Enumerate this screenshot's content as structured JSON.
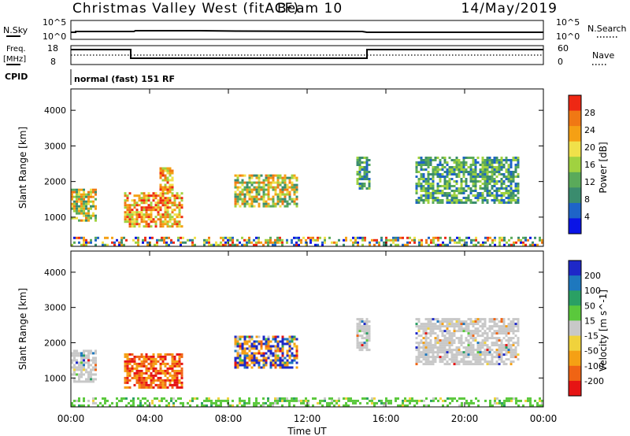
{
  "header": {
    "title": "Christmas Valley West (fitACF)",
    "beam": "Beam 10",
    "date": "14/May/2019"
  },
  "panels": {
    "nsky": {
      "label": "N.Sky",
      "ytick_top": "10^5",
      "ytick_bot": "10^0"
    },
    "nsearch": {
      "label": "N.Search",
      "ytick_top": "10^5",
      "ytick_bot": "10^0"
    },
    "freq": {
      "label_line1": "Freq.",
      "label_line2": "[MHz]",
      "ytick_top": "18",
      "ytick_bot": "8"
    },
    "nave": {
      "label": "Nave",
      "ytick_top": "60",
      "ytick_bot": "0"
    },
    "cpid": {
      "label": "CPID",
      "value": "normal (fast) 151 RF"
    }
  },
  "chart_data": [
    {
      "type": "heatmap",
      "title": "",
      "ylabel": "Slant Range [km]",
      "xlabel": "Time UT",
      "ylim": [
        180,
        4600
      ],
      "yticks": [
        "1000",
        "2000",
        "3000",
        "4000"
      ],
      "xticks": [
        "00:00",
        "04:00",
        "08:00",
        "12:00",
        "16:00",
        "20:00",
        "00:00"
      ],
      "colorbar": {
        "label": "Power [dB]",
        "ticks": [
          "4",
          "8",
          "12",
          "16",
          "20",
          "24",
          "28"
        ],
        "colors": [
          "#0a14e6",
          "#1e64c8",
          "#3a8c6e",
          "#5aaa5a",
          "#a0d240",
          "#f0e14a",
          "#f5a014",
          "#f07814",
          "#ee2814"
        ]
      },
      "regions": [
        {
          "t": [
            0.0,
            1.3
          ],
          "r": [
            900,
            1800
          ],
          "level": "mid"
        },
        {
          "t": [
            2.7,
            5.7
          ],
          "r": [
            700,
            1700
          ],
          "level": "high"
        },
        {
          "t": [
            4.5,
            5.2
          ],
          "r": [
            1700,
            2400
          ],
          "level": "high"
        },
        {
          "t": [
            8.3,
            11.5
          ],
          "r": [
            1300,
            2200
          ],
          "level": "mid"
        },
        {
          "t": [
            14.5,
            15.2
          ],
          "r": [
            1800,
            2700
          ],
          "level": "low"
        },
        {
          "t": [
            17.5,
            22.7
          ],
          "r": [
            1400,
            2700
          ],
          "level": "low"
        },
        {
          "t": [
            0.0,
            24.0
          ],
          "r": [
            180,
            450
          ],
          "level": "ground"
        }
      ]
    },
    {
      "type": "heatmap",
      "title": "",
      "ylabel": "Slant Range [km]",
      "xlabel": "Time UT",
      "ylim": [
        180,
        4600
      ],
      "yticks": [
        "1000",
        "2000",
        "3000",
        "4000"
      ],
      "xticks": [
        "00:00",
        "04:00",
        "08:00",
        "12:00",
        "16:00",
        "20:00",
        "00:00"
      ],
      "colorbar": {
        "label": "Velocity [m s^-1]",
        "ticks": [
          "200",
          "100",
          "50",
          "15",
          "-15",
          "-50",
          "-100",
          "-200"
        ],
        "colors": [
          "#1e28c8",
          "#1e78be",
          "#2aa064",
          "#5ac83c",
          "#c8c8c8",
          "#f0d23c",
          "#f5a014",
          "#f06414",
          "#e61414"
        ]
      },
      "regions": [
        {
          "t": [
            0.0,
            1.3
          ],
          "r": [
            900,
            1800
          ],
          "level": "zero"
        },
        {
          "t": [
            2.7,
            5.7
          ],
          "r": [
            700,
            1700
          ],
          "level": "neg"
        },
        {
          "t": [
            8.3,
            11.5
          ],
          "r": [
            1300,
            2200
          ],
          "level": "mixed"
        },
        {
          "t": [
            14.5,
            15.2
          ],
          "r": [
            1800,
            2700
          ],
          "level": "zero"
        },
        {
          "t": [
            17.5,
            22.7
          ],
          "r": [
            1400,
            2700
          ],
          "level": "zero"
        },
        {
          "t": [
            0.0,
            24.0
          ],
          "r": [
            180,
            450
          ],
          "level": "ground"
        }
      ]
    }
  ]
}
